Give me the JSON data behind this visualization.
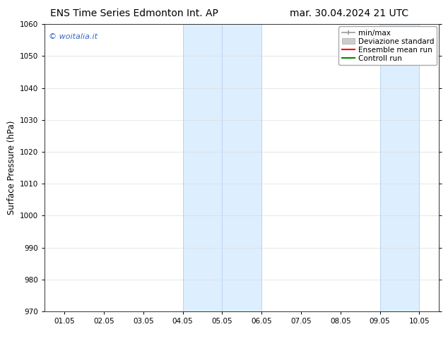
{
  "title_left": "ENS Time Series Edmonton Int. AP",
  "title_right": "mar. 30.04.2024 21 UTC",
  "ylabel": "Surface Pressure (hPa)",
  "ylim": [
    970,
    1060
  ],
  "yticks": [
    970,
    980,
    990,
    1000,
    1010,
    1020,
    1030,
    1040,
    1050,
    1060
  ],
  "xtick_labels": [
    "01.05",
    "02.05",
    "03.05",
    "04.05",
    "05.05",
    "06.05",
    "07.05",
    "08.05",
    "09.05",
    "10.05"
  ],
  "num_xticks": 10,
  "xlim_left": 0,
  "xlim_right": 9,
  "shaded_regions": [
    {
      "x_start": 3.0,
      "x_end": 5.0,
      "color": "#ddeeff"
    },
    {
      "x_start": 8.0,
      "x_end": 9.0,
      "color": "#ddeeff"
    }
  ],
  "vertical_lines_x": [
    3.0,
    4.0,
    5.0,
    8.0,
    9.0
  ],
  "vline_color": "#b8d4ee",
  "watermark_text": "© woitalia.it",
  "watermark_color": "#3366cc",
  "background_color": "#ffffff",
  "grid_color": "#dddddd",
  "legend_items": [
    {
      "label": "min/max",
      "color": "#999999",
      "style": "errorbar"
    },
    {
      "label": "Deviazione standard",
      "color": "#cccccc",
      "style": "box"
    },
    {
      "label": "Ensemble mean run",
      "color": "#ff0000",
      "style": "line"
    },
    {
      "label": "Controll run",
      "color": "#008800",
      "style": "line"
    }
  ],
  "title_fontsize": 10,
  "tick_fontsize": 7.5,
  "ylabel_fontsize": 8.5,
  "legend_fontsize": 7.5,
  "watermark_fontsize": 8
}
